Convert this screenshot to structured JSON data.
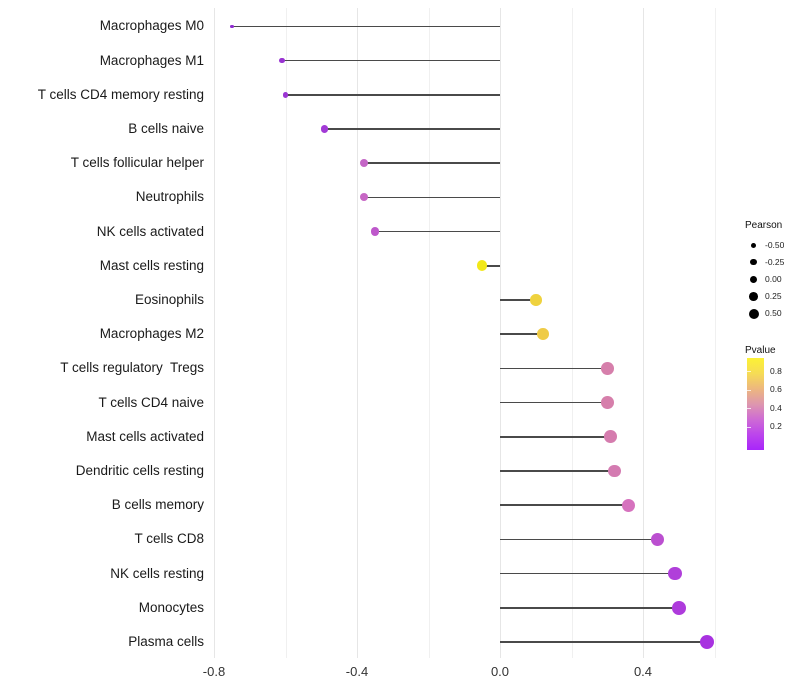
{
  "chart_data": {
    "type": "scatter",
    "variant": "lollipop-horizontal",
    "title": "",
    "xlabel": "",
    "ylabel": "",
    "categories": [
      "Macrophages M0",
      "Macrophages M1",
      "T cells CD4 memory resting",
      "B cells naive",
      "T cells follicular helper",
      "Neutrophils",
      "NK cells activated",
      "Mast cells resting",
      "Eosinophils",
      "Macrophages M2",
      "T cells regulatory  Tregs",
      "T cells CD4 naive",
      "Mast cells activated",
      "Dendritic cells resting",
      "B cells memory",
      "T cells CD8",
      "NK cells resting",
      "Monocytes",
      "Plasma cells"
    ],
    "series": [
      {
        "name": "Pearson",
        "values": [
          -0.75,
          -0.61,
          -0.6,
          -0.49,
          -0.38,
          -0.38,
          -0.35,
          -0.05,
          0.1,
          0.12,
          0.3,
          0.3,
          0.31,
          0.32,
          0.36,
          0.44,
          0.49,
          0.5,
          0.58
        ]
      }
    ],
    "point_colors": [
      "#8F2BD0",
      "#9933D2",
      "#9B36D3",
      "#A23AD6",
      "#C466C6",
      "#C767C5",
      "#BE58CB",
      "#F2E818",
      "#EFD23E",
      "#EFCB46",
      "#D67FAB",
      "#D67FAB",
      "#D57CAE",
      "#D47BB1",
      "#D672BE",
      "#BB4FD0",
      "#B03FDA",
      "#AE3BDC",
      "#A832E0"
    ],
    "xlim": [
      -0.95,
      0.65
    ],
    "grid": "vertical-only",
    "legend_position": "right"
  },
  "x_axis": {
    "tick_labels": [
      "-0.8",
      "-0.4",
      "0.0",
      "0.4"
    ],
    "tick_values": [
      -0.8,
      -0.4,
      0.0,
      0.4
    ],
    "minor_grid_values": [
      -0.6,
      -0.2,
      0.2,
      0.6
    ]
  },
  "legend_pearson": {
    "title": "Pearson",
    "dot_color": "#000000",
    "items": [
      {
        "label": "-0.50",
        "value": -0.5
      },
      {
        "label": "-0.25",
        "value": -0.25
      },
      {
        "label": "0.00",
        "value": 0.0
      },
      {
        "label": "0.25",
        "value": 0.25
      },
      {
        "label": "0.50",
        "value": 0.5
      }
    ]
  },
  "legend_pvalue": {
    "title": "Pvalue",
    "tick_labels": [
      "0.8",
      "0.6",
      "0.4",
      "0.2"
    ],
    "gradient_stops": [
      "#FCF235",
      "#F6DC55",
      "#EDB77E",
      "#DE97AE",
      "#CE6BD4",
      "#BC45EC",
      "#A826FA"
    ]
  }
}
